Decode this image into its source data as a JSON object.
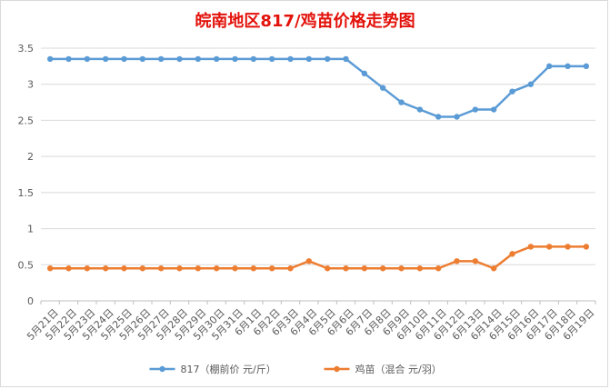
{
  "chart_data": {
    "type": "line",
    "title": "皖南地区817/鸡苗价格走势图",
    "categories": [
      "5月21日",
      "5月22日",
      "5月23日",
      "5月24日",
      "5月25日",
      "5月26日",
      "5月27日",
      "5月28日",
      "5月29日",
      "5月30日",
      "5月31日",
      "6月1日",
      "6月2日",
      "6月3日",
      "6月4日",
      "6月5日",
      "6月6日",
      "6月7日",
      "6月8日",
      "6月9日",
      "6月10日",
      "6月11日",
      "6月12日",
      "6月13日",
      "6月14日",
      "6月15日",
      "6月16日",
      "6月17日",
      "6月18日",
      "6月19日"
    ],
    "series": [
      {
        "name": "817（棚前价 元/斤）",
        "color": "#5b9bd5",
        "values": [
          3.35,
          3.35,
          3.35,
          3.35,
          3.35,
          3.35,
          3.35,
          3.35,
          3.35,
          3.35,
          3.35,
          3.35,
          3.35,
          3.35,
          3.35,
          3.35,
          3.35,
          3.15,
          2.95,
          2.75,
          2.65,
          2.55,
          2.55,
          2.65,
          2.65,
          2.9,
          3.0,
          3.25,
          3.25,
          3.25
        ]
      },
      {
        "name": "鸡苗（混合 元/羽）",
        "color": "#ed7d31",
        "values": [
          0.45,
          0.45,
          0.45,
          0.45,
          0.45,
          0.45,
          0.45,
          0.45,
          0.45,
          0.45,
          0.45,
          0.45,
          0.45,
          0.45,
          0.55,
          0.45,
          0.45,
          0.45,
          0.45,
          0.45,
          0.45,
          0.45,
          0.55,
          0.55,
          0.45,
          0.65,
          0.75,
          0.75,
          0.75,
          0.75
        ]
      }
    ],
    "y_ticks": [
      "0",
      "0.5",
      "1",
      "1.5",
      "2",
      "2.5",
      "3",
      "3.5"
    ],
    "ylim": [
      0,
      3.5
    ],
    "grid": true,
    "legend_position": "bottom"
  }
}
